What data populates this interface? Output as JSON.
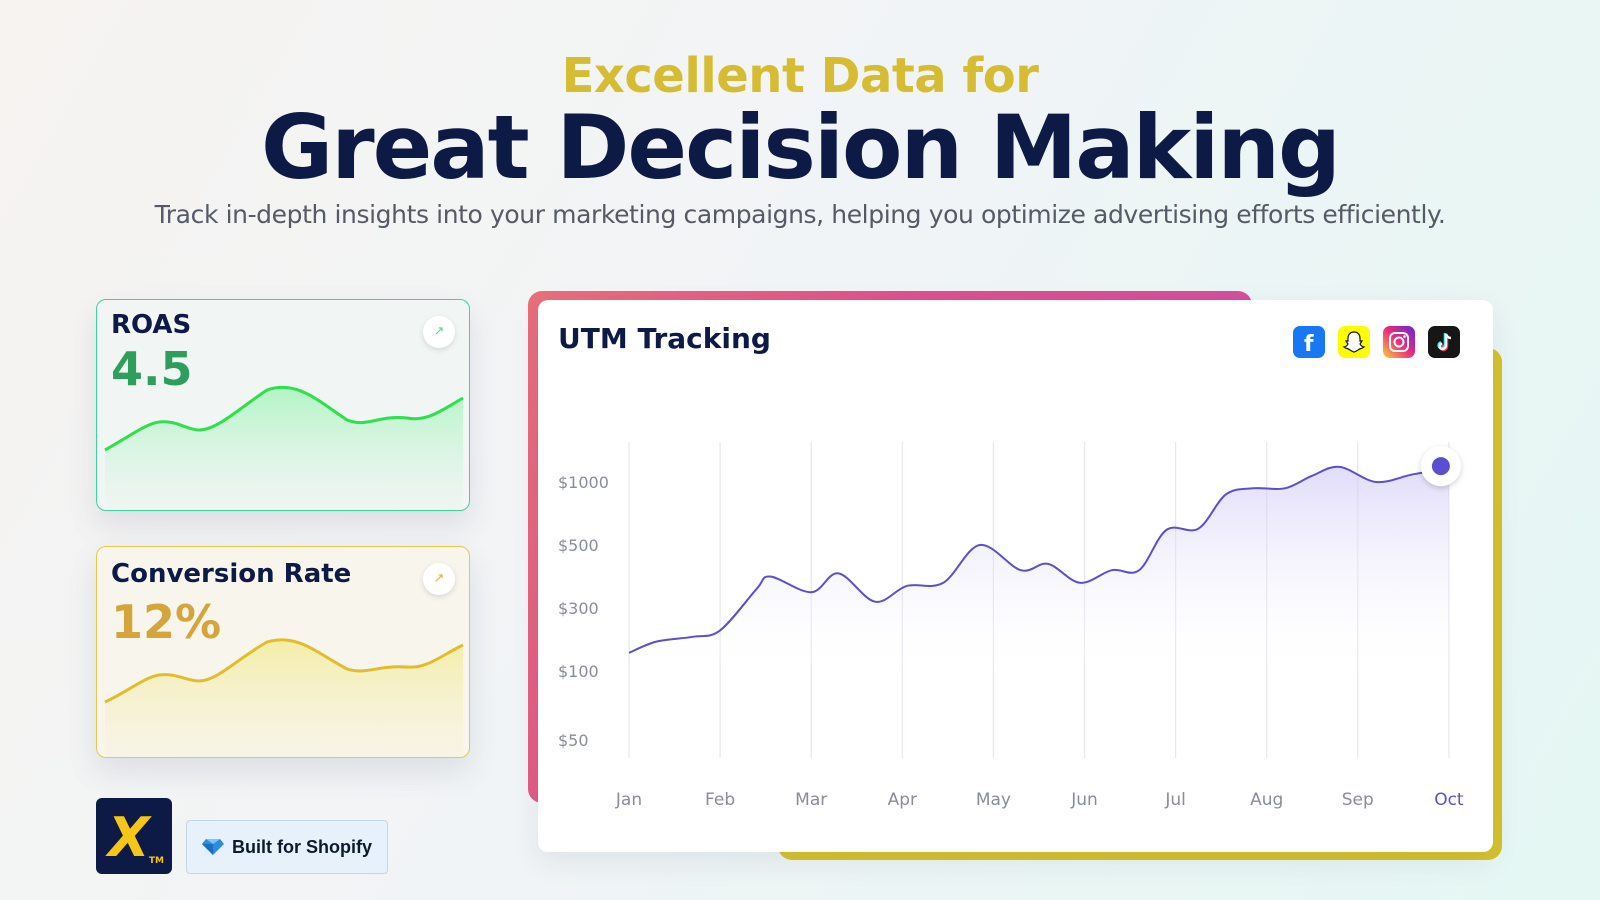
{
  "hero": {
    "headline": "Excellent Data for",
    "title": "Great Decision Making",
    "subtitle": "Track in-depth insights into your marketing campaigns, helping you optimize advertising efforts efficiently."
  },
  "kpis": [
    {
      "label": "ROAS",
      "value": "4.5",
      "arrow_icon": "arrow-up-right-icon",
      "color": "#2e9e5c"
    },
    {
      "label": "Conversion Rate",
      "value": "12%",
      "arrow_icon": "arrow-up-right-icon",
      "color": "#d3a53b"
    }
  ],
  "branding": {
    "logo_text": "X",
    "logo_tm": "TM",
    "badge_icon": "diamond-icon",
    "badge_label": "Built for Shopify"
  },
  "utm": {
    "title": "UTM Tracking",
    "social_icons": [
      "facebook-icon",
      "snapchat-icon",
      "instagram-icon",
      "tiktok-icon"
    ]
  },
  "chart_data": {
    "type": "line",
    "title": "UTM Tracking",
    "categories": [
      "Jan",
      "Feb",
      "Mar",
      "Apr",
      "May",
      "Jun",
      "Jul",
      "Aug",
      "Sep",
      "Oct"
    ],
    "y_ticks": [
      "$1000",
      "$500",
      "$300",
      "$100",
      "$50"
    ],
    "series": [
      {
        "x": [
          0,
          0.3,
          0.7,
          1.0,
          1.4,
          1.55,
          2.0,
          2.3,
          2.7,
          3.05,
          3.45,
          3.85,
          4.3,
          4.6,
          4.95,
          5.3,
          5.6,
          5.9,
          6.25,
          6.55,
          6.85,
          7.2,
          7.5,
          7.8,
          8.2,
          8.6,
          8.95,
          9.0
        ],
        "values": [
          160,
          195,
          210,
          230,
          360,
          400,
          350,
          410,
          320,
          370,
          380,
          500,
          420,
          440,
          380,
          420,
          420,
          620,
          630,
          900,
          950,
          950,
          1050,
          1120,
          1000,
          1060,
          1100,
          1110
        ]
      }
    ],
    "highlight_point": {
      "x": "Oct",
      "value": 1110
    },
    "grid": "vertical",
    "accent": "#5b4fd0"
  }
}
